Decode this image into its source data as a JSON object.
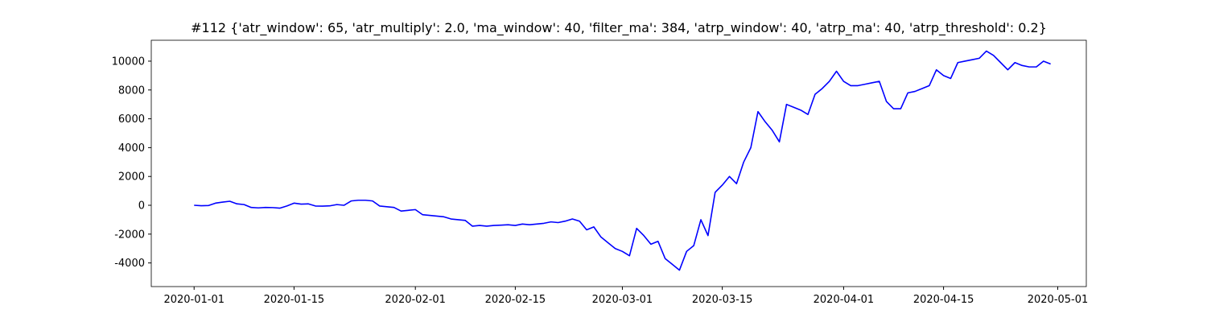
{
  "chart_data": {
    "type": "line",
    "title": "#112 {'atr_window': 65, 'atr_multiply': 2.0, 'ma_window': 40, 'filter_ma': 384, 'atrp_window': 40, 'atrp_ma': 40, 'atrp_threshold': 0.2}",
    "x": [
      "2020-01-01",
      "2020-01-02",
      "2020-01-03",
      "2020-01-04",
      "2020-01-05",
      "2020-01-06",
      "2020-01-07",
      "2020-01-08",
      "2020-01-09",
      "2020-01-10",
      "2020-01-11",
      "2020-01-12",
      "2020-01-13",
      "2020-01-14",
      "2020-01-15",
      "2020-01-16",
      "2020-01-17",
      "2020-01-18",
      "2020-01-19",
      "2020-01-20",
      "2020-01-21",
      "2020-01-22",
      "2020-01-23",
      "2020-01-24",
      "2020-01-25",
      "2020-01-26",
      "2020-01-27",
      "2020-01-28",
      "2020-01-29",
      "2020-01-30",
      "2020-01-31",
      "2020-02-01",
      "2020-02-02",
      "2020-02-03",
      "2020-02-04",
      "2020-02-05",
      "2020-02-06",
      "2020-02-07",
      "2020-02-08",
      "2020-02-09",
      "2020-02-10",
      "2020-02-11",
      "2020-02-12",
      "2020-02-13",
      "2020-02-14",
      "2020-02-15",
      "2020-02-16",
      "2020-02-17",
      "2020-02-18",
      "2020-02-19",
      "2020-02-20",
      "2020-02-21",
      "2020-02-22",
      "2020-02-23",
      "2020-02-24",
      "2020-02-25",
      "2020-02-26",
      "2020-02-27",
      "2020-02-28",
      "2020-02-29",
      "2020-03-01",
      "2020-03-02",
      "2020-03-03",
      "2020-03-04",
      "2020-03-05",
      "2020-03-06",
      "2020-03-07",
      "2020-03-08",
      "2020-03-09",
      "2020-03-10",
      "2020-03-11",
      "2020-03-12",
      "2020-03-13",
      "2020-03-14",
      "2020-03-15",
      "2020-03-16",
      "2020-03-17",
      "2020-03-18",
      "2020-03-19",
      "2020-03-20",
      "2020-03-21",
      "2020-03-22",
      "2020-03-23",
      "2020-03-24",
      "2020-03-25",
      "2020-03-26",
      "2020-03-27",
      "2020-03-28",
      "2020-03-29",
      "2020-03-30",
      "2020-03-31",
      "2020-04-01",
      "2020-04-02",
      "2020-04-03",
      "2020-04-04",
      "2020-04-05",
      "2020-04-06",
      "2020-04-07",
      "2020-04-08",
      "2020-04-09",
      "2020-04-10",
      "2020-04-11",
      "2020-04-12",
      "2020-04-13",
      "2020-04-14",
      "2020-04-15",
      "2020-04-16",
      "2020-04-17",
      "2020-04-18",
      "2020-04-19",
      "2020-04-20",
      "2020-04-21",
      "2020-04-22",
      "2020-04-23",
      "2020-04-24",
      "2020-04-25",
      "2020-04-26",
      "2020-04-27",
      "2020-04-28",
      "2020-04-29",
      "2020-04-30"
    ],
    "values": [
      0,
      -30,
      -20,
      150,
      220,
      280,
      100,
      50,
      -150,
      -180,
      -150,
      -160,
      -200,
      -50,
      150,
      80,
      100,
      -50,
      -60,
      -40,
      50,
      0,
      300,
      350,
      350,
      300,
      -50,
      -100,
      -150,
      -400,
      -350,
      -300,
      -650,
      -700,
      -750,
      -800,
      -950,
      -1000,
      -1050,
      -1450,
      -1400,
      -1450,
      -1400,
      -1380,
      -1350,
      -1400,
      -1300,
      -1350,
      -1300,
      -1250,
      -1150,
      -1200,
      -1100,
      -950,
      -1100,
      -1700,
      -1500,
      -2200,
      -2600,
      -3000,
      -3200,
      -3500,
      -1600,
      -2100,
      -2700,
      -2500,
      -3700,
      -4100,
      -4500,
      -3200,
      -2800,
      -1000,
      -2100,
      900,
      1400,
      2000,
      1500,
      3000,
      4000,
      6500,
      5800,
      5200,
      4400,
      7000,
      6800,
      6600,
      6300,
      7700,
      8100,
      8600,
      9300,
      8600,
      8300,
      8300,
      8400,
      8500,
      8600,
      7200,
      6700,
      6700,
      7800,
      7900,
      8100,
      8300,
      9400,
      9000,
      8800,
      9900,
      10000,
      10100,
      10200,
      10700,
      10400,
      9900,
      9400,
      9900,
      9700,
      9600,
      9600,
      10000,
      9800
    ],
    "color": "#0000ff",
    "xlim": [
      "2019-12-26",
      "2020-05-05"
    ],
    "xticks": [
      "2020-01-01",
      "2020-01-15",
      "2020-02-01",
      "2020-02-15",
      "2020-03-01",
      "2020-03-15",
      "2020-04-01",
      "2020-04-15",
      "2020-05-01"
    ],
    "ylim": [
      -5640,
      11450
    ],
    "yticks": [
      -4000,
      -2000,
      0,
      2000,
      4000,
      6000,
      8000,
      10000
    ]
  }
}
